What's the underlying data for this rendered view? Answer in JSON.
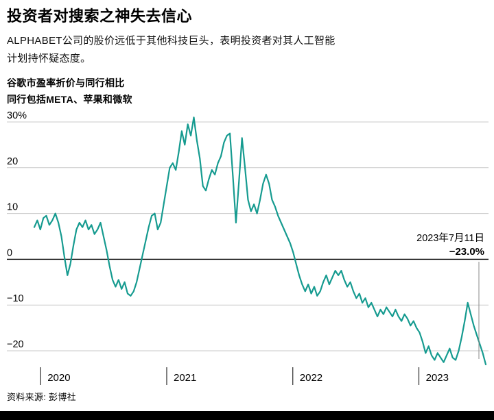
{
  "title": "投资者对搜索之神失去信心",
  "subtitle": {
    "line1": "ALPHABET公司的股价远低于其他科技巨头，表明投资者对其人工智能",
    "line2": "计划持怀疑态度。"
  },
  "kicker": {
    "line1": "谷歌市盈率折价与同行相比",
    "line2": "同行包括META、苹果和微软"
  },
  "source": "资料来源: 彭博社",
  "colors": {
    "line": "#169b90",
    "grid_line": "#c9c9c9",
    "zero_line": "#000000",
    "annotation_line": "#8a8a8a",
    "text": "#000000"
  },
  "chart_data": {
    "type": "line",
    "title": "谷歌市盈率折价与同行相比",
    "subtitle": "同行包括META、苹果和微软",
    "ylabel": "",
    "xlabel": "",
    "grid": true,
    "legend": false,
    "ylim": [
      -26,
      33
    ],
    "x_start": 2019.95,
    "x_end": 2023.53,
    "yticks": [
      {
        "label": "30%",
        "value": 30
      },
      {
        "label": "20",
        "value": 20
      },
      {
        "label": "10",
        "value": 10
      },
      {
        "label": "0",
        "value": 0
      },
      {
        "label": "−10",
        "value": -10
      },
      {
        "label": "−20",
        "value": -20
      }
    ],
    "xticks": [
      {
        "label": "2020",
        "value": 2020
      },
      {
        "label": "2021",
        "value": 2021
      },
      {
        "label": "2022",
        "value": 2022
      },
      {
        "label": "2023",
        "value": 2023
      }
    ],
    "series_name": "谷歌市盈率折价(%)",
    "values": [
      7,
      8.5,
      6.5,
      9,
      9.5,
      7.5,
      8.5,
      10,
      8,
      5,
      0.5,
      -3.5,
      -1,
      3,
      6.5,
      8,
      7,
      8.5,
      6.5,
      7.5,
      5.5,
      6.5,
      8,
      5,
      2,
      -1.5,
      -4.5,
      -6,
      -4.5,
      -6.5,
      -5,
      -7.5,
      -8,
      -7,
      -5,
      -2,
      1,
      4,
      7,
      9.5,
      10,
      6.5,
      8,
      12,
      16,
      20,
      21,
      19.5,
      23.5,
      28,
      25,
      29.5,
      27,
      31,
      26,
      22,
      16,
      15,
      17.5,
      19.5,
      18.5,
      21,
      22.5,
      25.5,
      27,
      27.5,
      18,
      8,
      17,
      26.5,
      20,
      13,
      10.5,
      12,
      10,
      13,
      16.5,
      18.5,
      16.5,
      13,
      11.5,
      9.5,
      8,
      6.5,
      5,
      3.5,
      1.5,
      -1,
      -3.5,
      -5.5,
      -7,
      -5.5,
      -7.5,
      -6,
      -8,
      -7,
      -5,
      -3.5,
      -5.5,
      -4,
      -2.5,
      -3.5,
      -2.5,
      -4.5,
      -6,
      -5,
      -7,
      -8.5,
      -7.5,
      -9.5,
      -8.5,
      -10.5,
      -9.5,
      -11,
      -12.5,
      -11,
      -12,
      -10.5,
      -11.5,
      -12.5,
      -11,
      -12.5,
      -13.5,
      -12,
      -13,
      -14.5,
      -13.5,
      -15,
      -16,
      -18,
      -20.5,
      -19,
      -21,
      -22,
      -20.5,
      -21.5,
      -22.5,
      -21,
      -19.5,
      -21.5,
      -22,
      -20,
      -17,
      -13.5,
      -9.5,
      -12,
      -14.5,
      -16.5,
      -18.5,
      -20.5,
      -23
    ],
    "annotation": {
      "date": "2023年7月11日",
      "value_label": "−23.0%",
      "value": -23.0,
      "x": 2023.53
    }
  }
}
